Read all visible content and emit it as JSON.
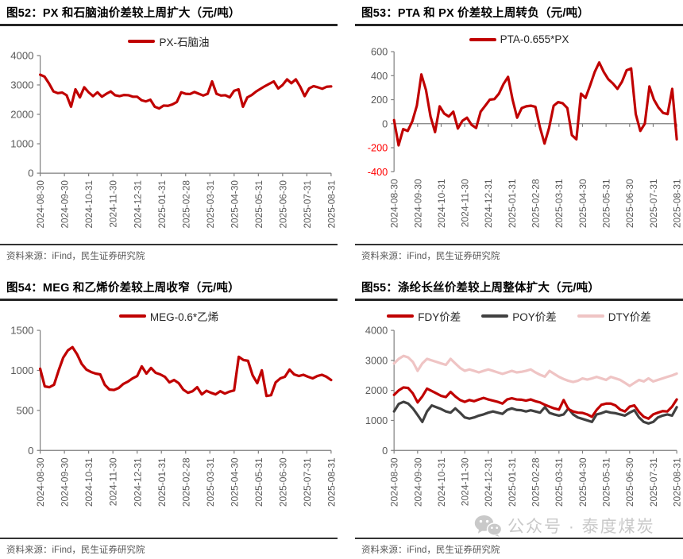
{
  "page": {
    "watermark": {
      "icon": "wechat-icon",
      "text": "公众号 · 泰度煤炭"
    }
  },
  "colors": {
    "accent_red": "#C00000",
    "poy_gray": "#404040",
    "dty_pink": "#EFC4C4",
    "axis": "#7F7F7F",
    "tick_label": "#595959",
    "negative_label": "#FF0000",
    "title_rule": "#262626",
    "watermark": "#C9C9C9"
  },
  "chart_data": [
    {
      "id": "fig52",
      "type": "line",
      "title": "图52：PX 和石脑油价差较上周扩大（元/吨）",
      "source": "资料来源：iFind，民生证券研究院",
      "ylim": [
        0,
        4000
      ],
      "y_ticks": [
        0,
        1000,
        2000,
        3000,
        4000
      ],
      "zero_axis": false,
      "grid": false,
      "legend_position": "top",
      "x_labels": [
        "2024-08-30",
        "2024-09-30",
        "2024-10-31",
        "2024-11-30",
        "2024-12-31",
        "2025-01-31",
        "2025-02-28",
        "2025-03-31",
        "2025-04-30",
        "2025-05-31",
        "2025-06-30",
        "2025-07-31",
        "2025-08-31"
      ],
      "series": [
        {
          "name": "PX-石脑油",
          "color": "#C00000",
          "values": [
            3350,
            3280,
            3050,
            2780,
            2720,
            2740,
            2650,
            2260,
            2850,
            2580,
            2920,
            2750,
            2620,
            2750,
            2600,
            2700,
            2780,
            2650,
            2620,
            2660,
            2650,
            2600,
            2600,
            2480,
            2440,
            2500,
            2260,
            2200,
            2300,
            2290,
            2340,
            2420,
            2750,
            2700,
            2690,
            2760,
            2700,
            2640,
            2700,
            3120,
            2700,
            2640,
            2650,
            2580,
            2800,
            2850,
            2260,
            2580,
            2660,
            2780,
            2870,
            2960,
            3040,
            3120,
            2880,
            3000,
            3190,
            3060,
            3190,
            2940,
            2620,
            2880,
            2960,
            2920,
            2870,
            2940,
            2950
          ]
        }
      ]
    },
    {
      "id": "fig53",
      "type": "line",
      "title": "图53：PTA 和 PX 价差较上周转负（元/吨）",
      "source": "资料来源：iFind，民生证券研究院",
      "ylim": [
        -400,
        600
      ],
      "y_ticks": [
        -400,
        -200,
        0,
        200,
        400,
        600
      ],
      "zero_axis": true,
      "grid": false,
      "legend_position": "top",
      "x_labels": [
        "2024-08-30",
        "2024-09-30",
        "2024-10-31",
        "2024-11-30",
        "2024-12-31",
        "2025-01-31",
        "2025-02-28",
        "2025-03-31",
        "2025-04-30",
        "2025-05-31",
        "2025-06-30",
        "2025-07-31",
        "2025-08-31"
      ],
      "series": [
        {
          "name": "PTA-0.655*PX",
          "color": "#C00000",
          "values": [
            30,
            -180,
            -45,
            -60,
            20,
            150,
            410,
            280,
            60,
            -70,
            145,
            85,
            60,
            100,
            -40,
            25,
            50,
            -10,
            -35,
            100,
            150,
            200,
            205,
            250,
            330,
            390,
            200,
            50,
            130,
            145,
            150,
            140,
            -30,
            -165,
            -35,
            150,
            180,
            170,
            130,
            -95,
            -130,
            250,
            215,
            320,
            430,
            510,
            430,
            370,
            335,
            290,
            350,
            445,
            460,
            80,
            -60,
            0,
            310,
            200,
            135,
            90,
            80,
            290,
            -130
          ]
        }
      ]
    },
    {
      "id": "fig54",
      "type": "line",
      "title": "图54：MEG 和乙烯价差较上周收窄（元/吨）",
      "source": "资料来源：iFind，民生证券研究院",
      "ylim": [
        0,
        1500
      ],
      "y_ticks": [
        0,
        500,
        1000,
        1500
      ],
      "zero_axis": false,
      "grid": false,
      "legend_position": "top",
      "x_labels": [
        "2024-08-30",
        "2024-09-30",
        "2024-10-31",
        "2024-11-30",
        "2024-12-31",
        "2025-01-31",
        "2025-02-28",
        "2025-03-31",
        "2025-04-30",
        "2025-05-31",
        "2025-06-30",
        "2025-07-31",
        "2025-08-31"
      ],
      "series": [
        {
          "name": "MEG-0.6*乙烯",
          "color": "#C00000",
          "values": [
            1020,
            800,
            790,
            820,
            1000,
            1160,
            1250,
            1290,
            1200,
            1080,
            1010,
            980,
            960,
            950,
            820,
            760,
            755,
            780,
            830,
            860,
            900,
            930,
            1050,
            960,
            1030,
            970,
            950,
            920,
            850,
            880,
            840,
            760,
            720,
            740,
            790,
            700,
            745,
            720,
            700,
            740,
            710,
            735,
            750,
            1170,
            1130,
            1120,
            940,
            840,
            1000,
            680,
            690,
            850,
            900,
            920,
            1010,
            950,
            930,
            945,
            920,
            900,
            930,
            945,
            920,
            880
          ]
        }
      ]
    },
    {
      "id": "fig55",
      "type": "line",
      "title": "图55：涤纶长丝价差较上周整体扩大（元/吨）",
      "source": "资料来源：iFind，民生证券研究院",
      "ylim": [
        0,
        4000
      ],
      "y_ticks": [
        0,
        1000,
        2000,
        3000,
        4000
      ],
      "zero_axis": false,
      "grid": false,
      "legend_position": "top",
      "x_labels": [
        "2024-08-30",
        "2024-09-30",
        "2024-10-31",
        "2024-11-30",
        "2024-12-31",
        "2025-01-31",
        "2025-02-28",
        "2025-03-31",
        "2025-04-30",
        "2025-05-31",
        "2025-06-30",
        "2025-07-31",
        "2025-08-31"
      ],
      "series": [
        {
          "name": "FDY价差",
          "color": "#C00000",
          "values": [
            1850,
            2000,
            2100,
            2080,
            1900,
            1600,
            1800,
            2060,
            1980,
            1900,
            1820,
            1780,
            1950,
            1800,
            1680,
            1620,
            1680,
            1640,
            1700,
            1750,
            1700,
            1660,
            1620,
            1560,
            1700,
            1740,
            1700,
            1690,
            1660,
            1700,
            1640,
            1600,
            1520,
            1460,
            1400,
            1360,
            1680,
            1380,
            1300,
            1260,
            1250,
            1200,
            1120,
            1350,
            1520,
            1560,
            1560,
            1500,
            1360,
            1300,
            1460,
            1500,
            1280,
            1120,
            1060,
            1200,
            1260,
            1310,
            1300,
            1460,
            1700
          ]
        },
        {
          "name": "POY价差",
          "color": "#404040",
          "values": [
            1300,
            1550,
            1620,
            1560,
            1400,
            1180,
            950,
            1300,
            1500,
            1440,
            1380,
            1300,
            1260,
            1400,
            1260,
            1100,
            1060,
            1100,
            1160,
            1200,
            1260,
            1300,
            1260,
            1220,
            1350,
            1400,
            1350,
            1340,
            1300,
            1340,
            1300,
            1260,
            1440,
            1250,
            1200,
            1160,
            1200,
            1400,
            1200,
            1100,
            1050,
            1000,
            950,
            1200,
            1240,
            1300,
            1260,
            1240,
            1200,
            1160,
            1260,
            1340,
            1100,
            950,
            900,
            950,
            1100,
            1160,
            1200,
            1160,
            1440
          ]
        },
        {
          "name": "DTY价差",
          "color": "#EFC4C4",
          "values": [
            2900,
            3050,
            3150,
            3100,
            2950,
            2650,
            2900,
            3050,
            3000,
            2950,
            2900,
            2850,
            3050,
            2900,
            2750,
            2650,
            2700,
            2650,
            2600,
            2650,
            2700,
            2650,
            2600,
            2550,
            2600,
            2650,
            2600,
            2620,
            2650,
            2700,
            2600,
            2520,
            2460,
            2650,
            2550,
            2450,
            2380,
            2320,
            2280,
            2320,
            2400,
            2360,
            2400,
            2450,
            2400,
            2350,
            2450,
            2400,
            2350,
            2250,
            2150,
            2250,
            2350,
            2300,
            2400,
            2300,
            2350,
            2400,
            2450,
            2500,
            2560
          ]
        }
      ]
    }
  ]
}
